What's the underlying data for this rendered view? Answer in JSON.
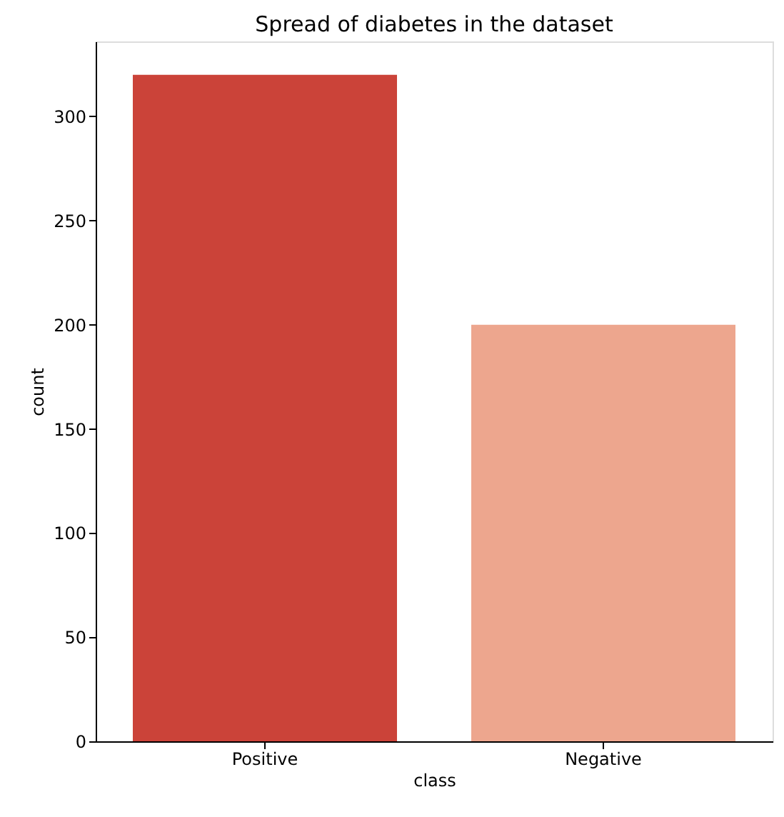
{
  "chart_data": {
    "type": "bar",
    "title": "Spread of diabetes in the dataset",
    "xlabel": "class",
    "ylabel": "count",
    "categories": [
      "Positive",
      "Negative"
    ],
    "values": [
      320,
      200
    ],
    "colors": [
      "#cb4339",
      "#eda68e"
    ],
    "ylim": [
      0,
      336
    ],
    "yticks": [
      0,
      50,
      100,
      150,
      200,
      250,
      300
    ],
    "grid": false
  }
}
